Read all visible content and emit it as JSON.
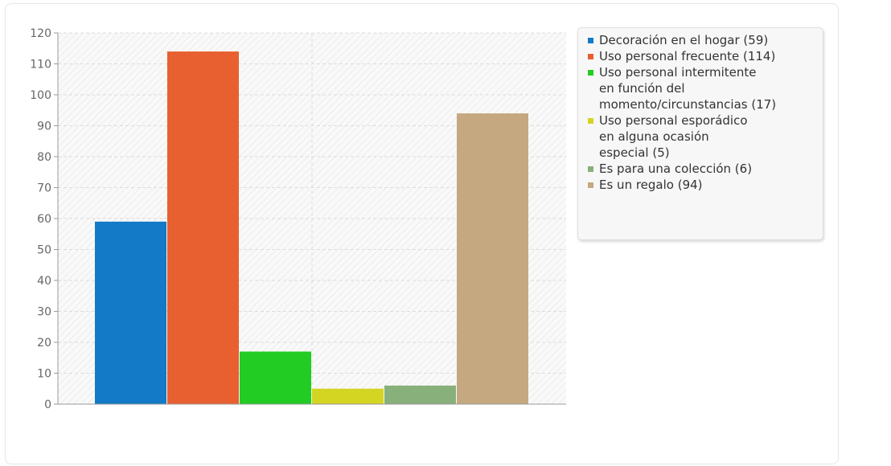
{
  "chart_data": {
    "type": "bar",
    "categories": [
      "Decoración en el hogar (59)",
      "Uso personal frecuente (114)",
      "Uso personal intermitente en función del momento/circunstancias (17)",
      "Uso personal esporádico en alguna ocasión especial (5)",
      "Es para una colección (6)",
      "Es un regalo (94)"
    ],
    "values": [
      59,
      114,
      17,
      5,
      6,
      94
    ],
    "colors": [
      "#127ac6",
      "#e85f30",
      "#22cc22",
      "#d4d422",
      "#88b07a",
      "#c5a880"
    ],
    "ylim": [
      0,
      120
    ],
    "yticks": [
      "0",
      "10",
      "20",
      "30",
      "40",
      "50",
      "60",
      "70",
      "80",
      "90",
      "100",
      "110",
      "120"
    ],
    "grid": true,
    "legend_position": "right"
  },
  "legend": {
    "items": [
      {
        "lines": [
          "Decoración en el hogar (59)"
        ]
      },
      {
        "lines": [
          "Uso personal frecuente (114)"
        ]
      },
      {
        "lines": [
          "Uso personal intermitente",
          "en función del",
          "momento/circunstancias (17)"
        ]
      },
      {
        "lines": [
          "Uso personal esporádico",
          "en alguna ocasión",
          "especial (5)"
        ]
      },
      {
        "lines": [
          "Es para una colección (6)"
        ]
      },
      {
        "lines": [
          "Es un regalo (94)"
        ]
      }
    ]
  }
}
